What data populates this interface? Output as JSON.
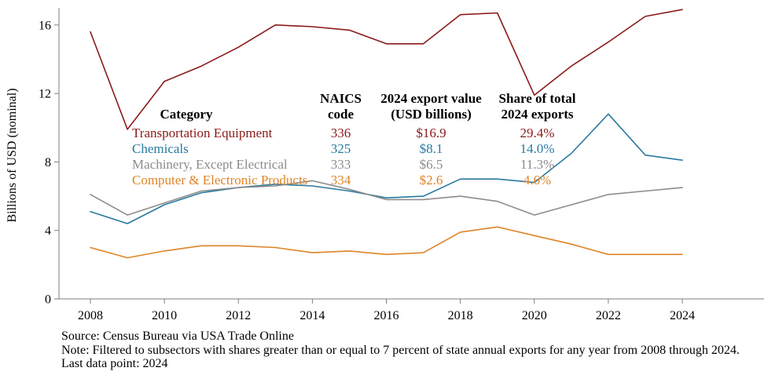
{
  "chart_data": {
    "type": "line",
    "title": "",
    "xlabel": "",
    "ylabel": "Billions of USD (nominal)",
    "x": [
      2008,
      2009,
      2010,
      2011,
      2012,
      2013,
      2014,
      2015,
      2016,
      2017,
      2018,
      2019,
      2020,
      2021,
      2022,
      2023,
      2024
    ],
    "xticks": [
      2008,
      2010,
      2012,
      2014,
      2016,
      2018,
      2020,
      2022,
      2024
    ],
    "yticks": [
      0,
      4,
      8,
      12,
      16
    ],
    "ylim": [
      0,
      17
    ],
    "grid": false,
    "legend_position": "embedded-table",
    "axis_color": "#7f7f7f",
    "series": [
      {
        "name": "Transportation Equipment",
        "color": "#8B1A1A",
        "values": [
          15.6,
          9.9,
          12.7,
          13.6,
          14.7,
          16.0,
          15.9,
          15.7,
          14.9,
          14.9,
          16.6,
          16.7,
          11.9,
          13.6,
          15.0,
          16.5,
          16.9
        ]
      },
      {
        "name": "Chemicals",
        "color": "#2A7A9E",
        "values": [
          5.1,
          4.4,
          5.5,
          6.2,
          6.5,
          6.7,
          6.6,
          6.3,
          5.9,
          6.0,
          7.0,
          7.0,
          6.8,
          8.5,
          10.8,
          8.4,
          8.1
        ]
      },
      {
        "name": "Machinery, Except Electrical",
        "color": "#8C8C8C",
        "values": [
          6.1,
          4.9,
          5.6,
          6.3,
          6.5,
          6.6,
          6.9,
          6.4,
          5.8,
          5.8,
          6.0,
          5.7,
          4.9,
          5.5,
          6.1,
          6.3,
          6.5
        ]
      },
      {
        "name": "Computer & Electronic Products",
        "color": "#DF8427",
        "values": [
          3.0,
          2.4,
          2.8,
          3.1,
          3.1,
          3.0,
          2.7,
          2.8,
          2.6,
          2.7,
          3.9,
          4.2,
          3.7,
          3.2,
          2.6,
          2.6,
          2.6
        ]
      }
    ]
  },
  "legend_table": {
    "headers": [
      "Category",
      "NAICS\ncode",
      "2024 export value\n(USD billions)",
      "Share of total\n2024 exports"
    ],
    "rows": [
      {
        "category": "Transportation Equipment",
        "naics": "336",
        "value": "$16.9",
        "share": "29.4%",
        "color": "#8B1A1A"
      },
      {
        "category": "Chemicals",
        "naics": "325",
        "value": "$8.1",
        "share": "14.0%",
        "color": "#2A7A9E"
      },
      {
        "category": "Machinery, Except Electrical",
        "naics": "333",
        "value": "$6.5",
        "share": "11.3%",
        "color": "#8C8C8C"
      },
      {
        "category": "Computer & Electronic Products",
        "naics": "334",
        "value": "$2.6",
        "share": "4.6%",
        "color": "#DF8427"
      }
    ]
  },
  "footer": {
    "source": "Source: Census Bureau via USA Trade Online",
    "note": "Note: Filtered to subsectors with shares greater than or equal to 7 percent of state annual exports for any year from 2008 through 2024.",
    "last_data_point": "Last data point: 2024"
  }
}
